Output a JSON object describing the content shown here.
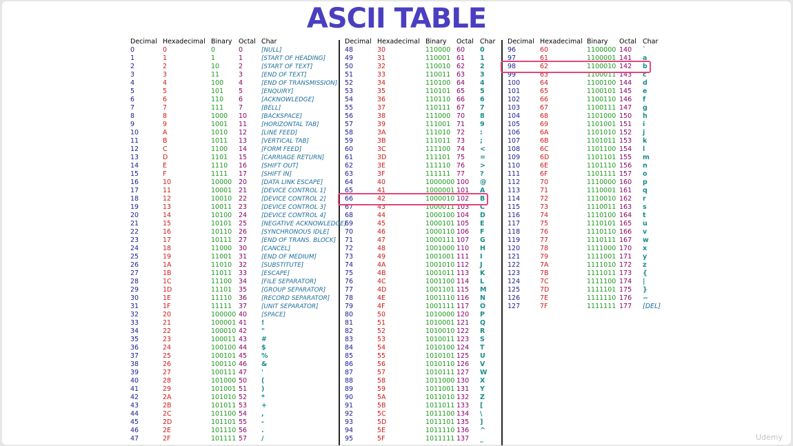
{
  "title": "ASCII TABLE",
  "watermark": "Udemy",
  "headers": {
    "decimal": "Decimal",
    "hexadecimal": "Hexadecimal",
    "binary": "Binary",
    "octal": "Octal",
    "char": "Char"
  },
  "highlighted_decimals": [
    66,
    98
  ],
  "colors": {
    "title": "#4a3fc0",
    "decimal": "#1a1a8c",
    "hexadecimal": "#cc1a1a",
    "binary": "#1a9a1a",
    "octal": "#880066",
    "char": "#1a8c8c",
    "highlight": "#e0457a"
  },
  "chars": [
    "[NULL]",
    "[START OF HEADING]",
    "[START OF TEXT]",
    "[END OF TEXT]",
    "[END OF TRANSMISSION]",
    "[ENQUIRY]",
    "[ACKNOWLEDGE]",
    "[BELL]",
    "[BACKSPACE]",
    "[HORIZONTAL TAB]",
    "[LINE FEED]",
    "[VERTICAL TAB]",
    "[FORM FEED]",
    "[CARRIAGE RETURN]",
    "[SHIFT OUT]",
    "[SHIFT IN]",
    "[DATA LINK ESCAPE]",
    "[DEVICE CONTROL 1]",
    "[DEVICE CONTROL 2]",
    "[DEVICE CONTROL 3]",
    "[DEVICE CONTROL 4]",
    "[NEGATIVE ACKNOWLEDGE]",
    "[SYNCHRONOUS IDLE]",
    "[END OF TRANS. BLOCK]",
    "[CANCEL]",
    "[END OF MEDIUM]",
    "[SUBSTITUTE]",
    "[ESCAPE]",
    "[FILE SEPARATOR]",
    "[GROUP SEPARATOR]",
    "[RECORD SEPARATOR]",
    "[UNIT SEPARATOR]",
    "[SPACE]",
    "!",
    "\"",
    "#",
    "$",
    "%",
    "&",
    "'",
    "(",
    ")",
    "*",
    "+",
    ",",
    "-",
    ".",
    "/",
    "0",
    "1",
    "2",
    "3",
    "4",
    "5",
    "6",
    "7",
    "8",
    "9",
    ":",
    ";",
    "<",
    "=",
    ">",
    "?",
    "@",
    "A",
    "B",
    "C",
    "D",
    "E",
    "F",
    "G",
    "H",
    "I",
    "J",
    "K",
    "L",
    "M",
    "N",
    "O",
    "P",
    "Q",
    "R",
    "S",
    "T",
    "U",
    "V",
    "W",
    "X",
    "Y",
    "Z",
    "[",
    "\\",
    "]",
    "^",
    "_",
    "`",
    "a",
    "b",
    "c",
    "d",
    "e",
    "f",
    "g",
    "h",
    "i",
    "j",
    "k",
    "l",
    "m",
    "n",
    "o",
    "p",
    "q",
    "r",
    "s",
    "t",
    "u",
    "v",
    "w",
    "x",
    "y",
    "z",
    "{",
    "|",
    "}",
    "~",
    "[DEL]"
  ]
}
